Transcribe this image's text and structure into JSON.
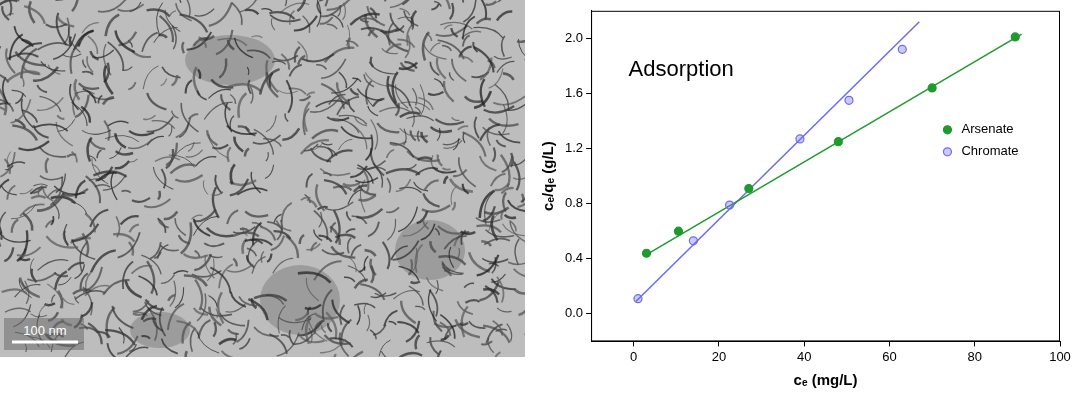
{
  "image": {
    "scale_bar_label": "100 nm"
  },
  "chart_data": {
    "type": "scatter",
    "annotation": "Adsorption",
    "x_label": "cₑ (mg/L)",
    "y_label": "cₑ/qₑ (g/L)",
    "xlim": [
      -10,
      100
    ],
    "xticks": [
      0,
      20,
      40,
      60,
      80,
      100
    ],
    "ylim": [
      -0.2,
      2.2
    ],
    "yticks": [
      {
        "value": 0,
        "label": "0.0"
      },
      0.4,
      0.8,
      1.2,
      1.6,
      {
        "value": 2,
        "label": "2.0"
      }
    ],
    "grid": false,
    "legend": "right",
    "series": [
      {
        "name": "Arsenate",
        "color": "#1e9a2e",
        "marker": "circle",
        "x": [
          3,
          10.5,
          27,
          48,
          70,
          89.5
        ],
        "values": [
          0.44,
          0.6,
          0.91,
          1.25,
          1.64,
          2.01
        ],
        "fit": {
          "x": [
            3,
            91
          ],
          "values": [
            0.43,
            2.03
          ]
        }
      },
      {
        "name": "Chromate",
        "color": "#6b6bef",
        "marker": "half-filled circle",
        "x": [
          1,
          14,
          22.5,
          39,
          50.5,
          63
        ],
        "values": [
          0.11,
          0.53,
          0.79,
          1.27,
          1.55,
          1.92
        ],
        "fit": {
          "x": [
            0.5,
            67
          ],
          "values": [
            0.09,
            2.12
          ]
        }
      }
    ]
  }
}
